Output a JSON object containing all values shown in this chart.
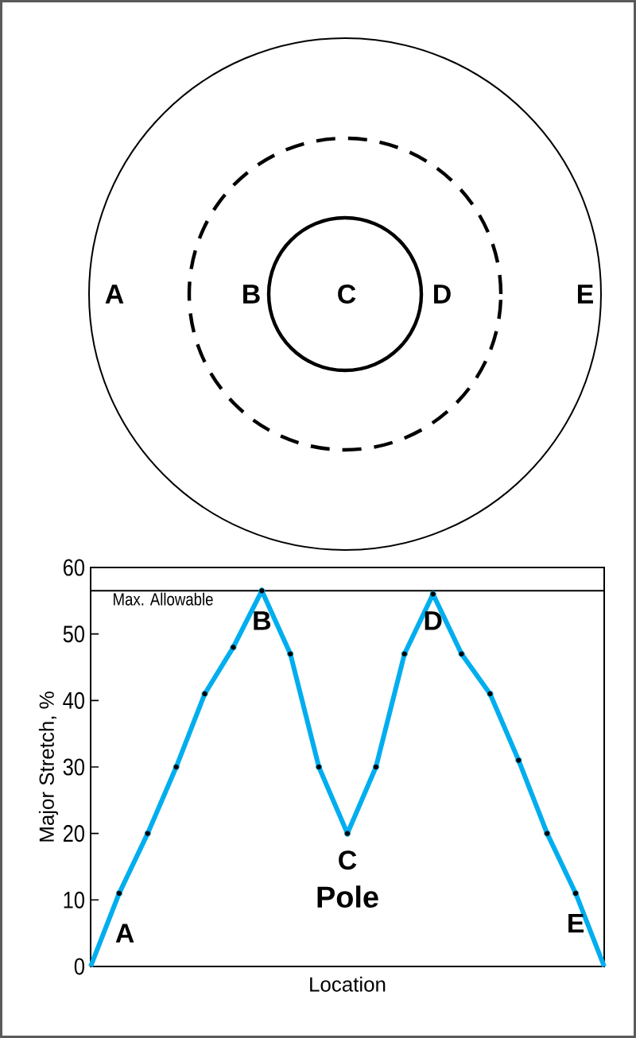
{
  "chart_data": {
    "type": "line",
    "xlabel": "Location",
    "ylabel": "Major Stretch, %",
    "ylim": [
      0,
      60
    ],
    "yticks": [
      0,
      10,
      20,
      30,
      40,
      50,
      60
    ],
    "categories": [
      null,
      null,
      null,
      null,
      null,
      null,
      null,
      null,
      null,
      null,
      null,
      null,
      null,
      null,
      null,
      null,
      null,
      null,
      null
    ],
    "series": [
      {
        "color": "#00aeef",
        "values": [
          0,
          11,
          20,
          30,
          41,
          48,
          56.5,
          47,
          30,
          20,
          30,
          47,
          56,
          47,
          41,
          31,
          20,
          11,
          0
        ]
      }
    ],
    "marker": "circle",
    "line_style": "solid",
    "ref_lines": [
      {
        "axis": "y",
        "value": 56.5,
        "label": "Max. Allowable",
        "color": "#000000"
      }
    ],
    "annotations": [
      "A",
      "B",
      "C",
      "Pole",
      "D",
      "E",
      "A",
      "B",
      "C",
      "D",
      "E"
    ]
  }
}
